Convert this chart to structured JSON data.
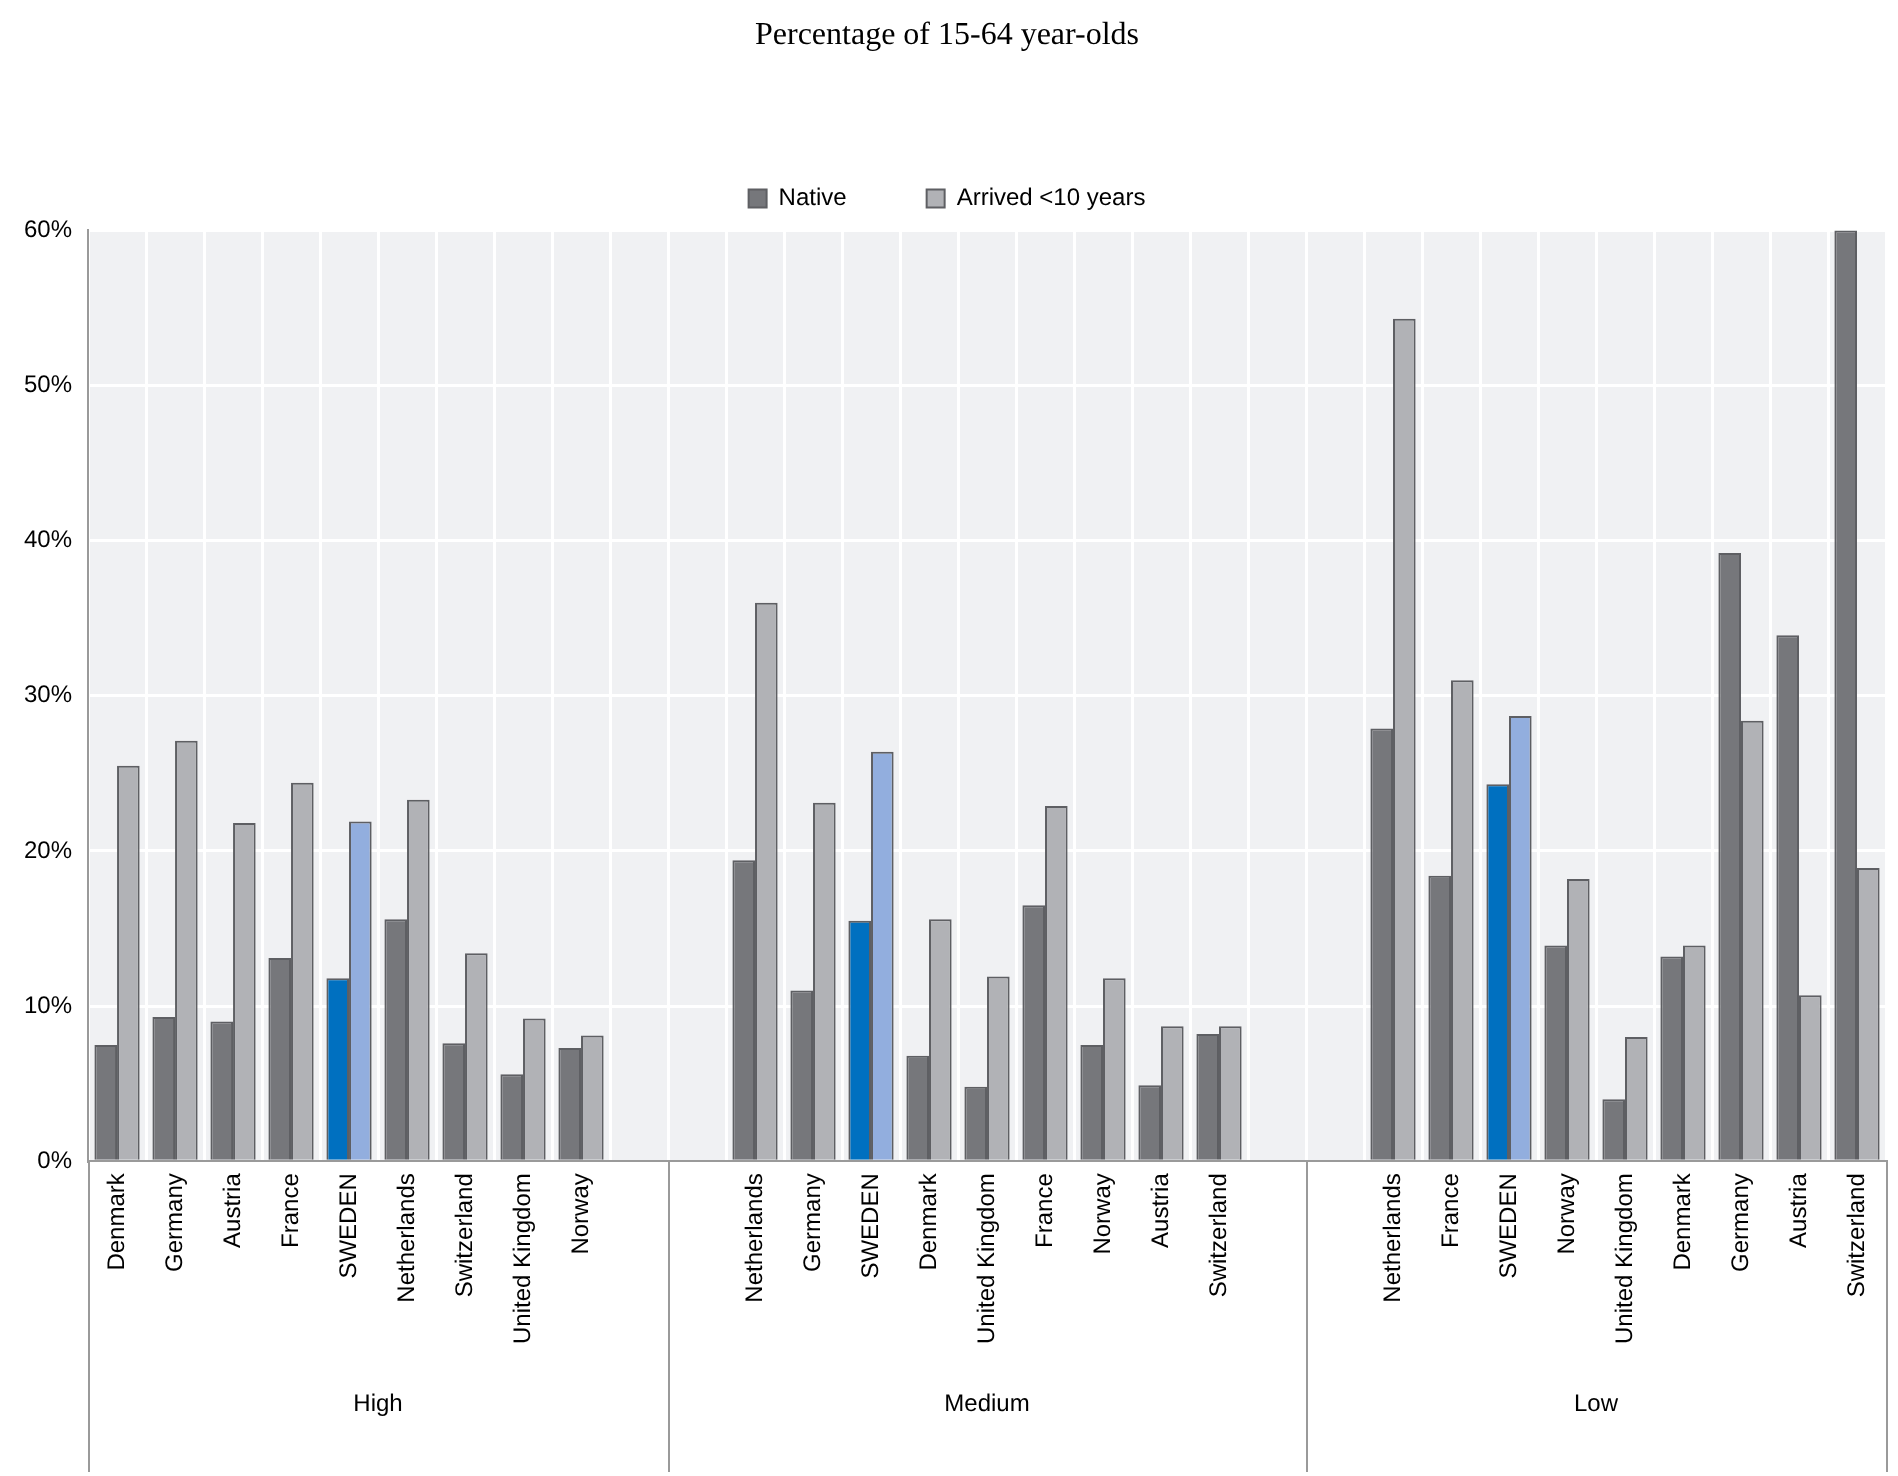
{
  "chart_data": {
    "type": "bar",
    "title": "Percentage of 15-64 year-olds",
    "categories": [
      "Denmark",
      "Germany",
      "Austria",
      "France",
      "SWEDEN",
      "Netherlands",
      "Switzerland",
      "United Kingdom",
      "Norway",
      null,
      null,
      "Netherlands",
      "Germany",
      "SWEDEN",
      "Denmark",
      "United Kingdom",
      "France",
      "Norway",
      "Austria",
      "Switzerland",
      null,
      null,
      "Netherlands",
      "France",
      "SWEDEN",
      "Norway",
      "United Kingdom",
      "Denmark",
      "Germany",
      "Austria",
      "Switzerland"
    ],
    "series": [
      {
        "name": "Native",
        "color": "#76777b",
        "colors": [
          "#76777b",
          "#76777b",
          "#76777b",
          "#76777b",
          "#0070c0",
          "#76777b",
          "#76777b",
          "#76777b",
          "#76777b",
          null,
          null,
          "#76777b",
          "#76777b",
          "#0070c0",
          "#76777b",
          "#76777b",
          "#76777b",
          "#76777b",
          "#76777b",
          "#76777b",
          null,
          null,
          "#76777b",
          "#76777b",
          "#0070c0",
          "#76777b",
          "#76777b",
          "#76777b",
          "#76777b",
          "#76777b",
          "#76777b"
        ],
        "values": [
          7.5,
          9.3,
          9.0,
          13.1,
          11.8,
          15.6,
          7.6,
          5.6,
          7.3,
          null,
          null,
          19.4,
          11.0,
          15.5,
          6.8,
          4.8,
          16.5,
          7.5,
          4.9,
          8.2,
          null,
          null,
          27.9,
          18.4,
          24.3,
          13.9,
          4.0,
          13.2,
          39.2,
          33.9,
          60
        ]
      },
      {
        "name": "Arrived <10 years",
        "color": "#b1b2b6",
        "colors": [
          "#b1b2b6",
          "#b1b2b6",
          "#b1b2b6",
          "#b1b2b6",
          "#92aede",
          "#b1b2b6",
          "#b1b2b6",
          "#b1b2b6",
          "#b1b2b6",
          null,
          null,
          "#b1b2b6",
          "#b1b2b6",
          "#92aede",
          "#b1b2b6",
          "#b1b2b6",
          "#b1b2b6",
          "#b1b2b6",
          "#b1b2b6",
          "#b1b2b6",
          null,
          null,
          "#b1b2b6",
          "#b1b2b6",
          "#92aede",
          "#b1b2b6",
          "#b1b2b6",
          "#b1b2b6",
          "#b1b2b6",
          "#b1b2b6",
          "#b1b2b6"
        ],
        "values": [
          25.5,
          27.1,
          21.8,
          24.4,
          21.9,
          23.3,
          13.4,
          9.2,
          8.1,
          null,
          null,
          36.0,
          23.1,
          26.4,
          15.6,
          11.9,
          22.9,
          11.8,
          8.7,
          8.7,
          null,
          null,
          54.3,
          31.0,
          28.7,
          18.2,
          8.0,
          13.9,
          28.4,
          10.7,
          18.9
        ]
      }
    ],
    "ylim": [
      0,
      60
    ],
    "yticks": [
      {
        "value": 0,
        "label": "0%"
      },
      {
        "value": 10,
        "label": "10%"
      },
      {
        "value": 20,
        "label": "20%"
      },
      {
        "value": 30,
        "label": "30%"
      },
      {
        "value": 40,
        "label": "40%"
      },
      {
        "value": 50,
        "label": "50%"
      },
      {
        "value": 60,
        "label": "60%"
      }
    ],
    "annotations": [
      "High",
      "Medium",
      "Low"
    ],
    "grid": true,
    "legend": "top"
  }
}
